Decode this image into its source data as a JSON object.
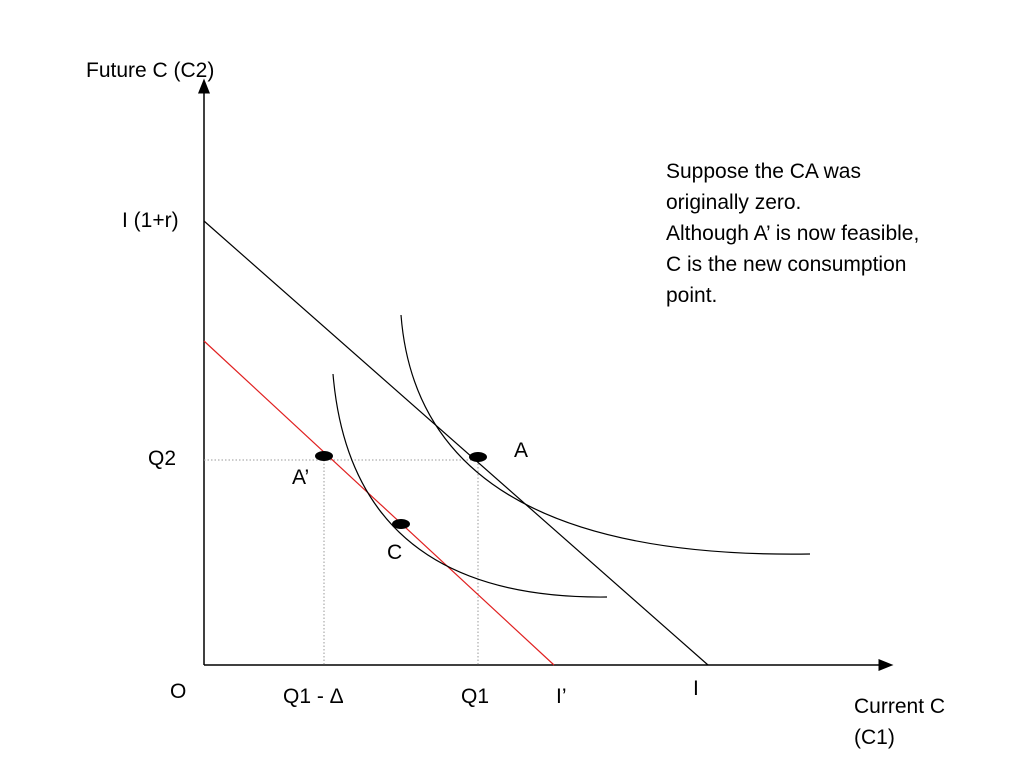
{
  "axes": {
    "y_label": "Future C (C2)",
    "x_label_line1": "Current C",
    "x_label_line2": "(C1)",
    "origin": "O"
  },
  "y_ticks": {
    "intercept": "I (1+r)",
    "q2": "Q2"
  },
  "x_ticks": {
    "q1_minus_delta": "Q1 - Δ",
    "q1": "Q1",
    "i_prime": "I’",
    "i": "I"
  },
  "points": {
    "a": "A",
    "a_prime": "A’",
    "c": "C"
  },
  "annotation": {
    "lines": [
      "Suppose the CA was",
      "originally zero.",
      "Although A’ is now feasible,",
      "C is the new consumption",
      "point."
    ]
  },
  "colors": {
    "budget_line": "#000000",
    "new_budget_line": "#e02020",
    "guide_line": "#9a9a9a",
    "indifference_curve": "#000000"
  }
}
